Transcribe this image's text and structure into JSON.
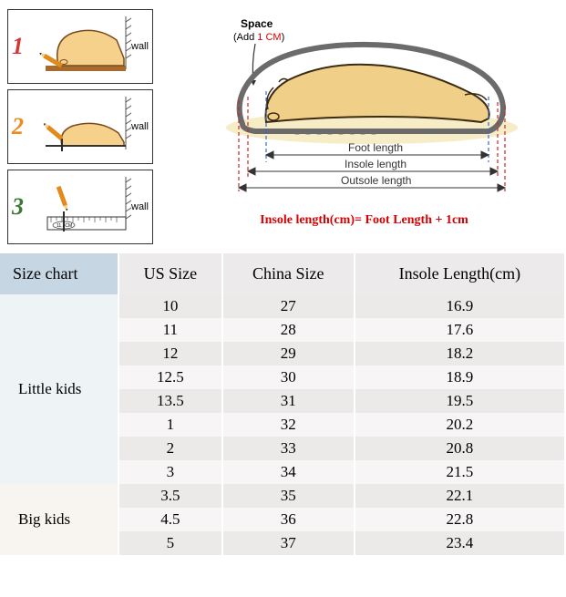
{
  "steps": {
    "wall_label": "wall",
    "ruler_reading": "11.5CM",
    "n1_color": "#d93434",
    "n2_color": "#f08a1c",
    "n3_color": "#3a7a36",
    "foot_fill": "#f6d18b",
    "foot_stroke": "#7a4a1e",
    "pencil_body": "#e28a1a",
    "pencil_tip": "#2b2b2b",
    "floor_color": "#a86b2e",
    "wall_line_color": "#555"
  },
  "diagram": {
    "space_title": "Space",
    "space_sub_prefix": "(Add ",
    "space_value": "1 CM",
    "space_sub_suffix": ")",
    "labels": {
      "foot": "Foot length",
      "insole": "Insole length",
      "outsole": "Outsole length"
    },
    "formula": "Insole length(cm)= Foot Length + 1cm",
    "shoe_outline_color": "#6b6b6b",
    "foot_fill": "#f0cf88",
    "foot_stroke": "#3b2b12",
    "shadow_fill": "#f4e7b7",
    "dash_blue": "#2c6bd6",
    "dash_red": "#c92a2a",
    "space_value_color": "#d80000",
    "label_color": "#333",
    "label_fontsize": 12,
    "formula_fontsize": 14
  },
  "table": {
    "headers": [
      "Size chart",
      "US Size",
      "China Size",
      "Insole Length(cm)"
    ],
    "header_bg": [
      "#c6d7e3",
      "#eceaea",
      "#eceaea",
      "#eceaea"
    ],
    "groups": [
      {
        "label": "Little kids",
        "cat_bg": "#eef3f6",
        "rows": [
          [
            "10",
            "27",
            "16.9"
          ],
          [
            "11",
            "28",
            "17.6"
          ],
          [
            "12",
            "29",
            "18.2"
          ],
          [
            "12.5",
            "30",
            "18.9"
          ],
          [
            "13.5",
            "31",
            "19.5"
          ],
          [
            "1",
            "32",
            "20.2"
          ],
          [
            "2",
            "33",
            "20.8"
          ],
          [
            "3",
            "34",
            "21.5"
          ]
        ]
      },
      {
        "label": "Big kids",
        "cat_bg": "#f8f5f0",
        "rows": [
          [
            "3.5",
            "35",
            "22.1"
          ],
          [
            "4.5",
            "36",
            "22.8"
          ],
          [
            "5",
            "37",
            "23.4"
          ]
        ]
      }
    ],
    "row_alt_bg": [
      "#ece9e9",
      "#f7f5f5"
    ],
    "col_widths_pct": [
      21,
      19,
      24,
      36
    ],
    "font_family": "Times New Roman",
    "header_fontsize": 18,
    "cell_fontsize": 17
  }
}
